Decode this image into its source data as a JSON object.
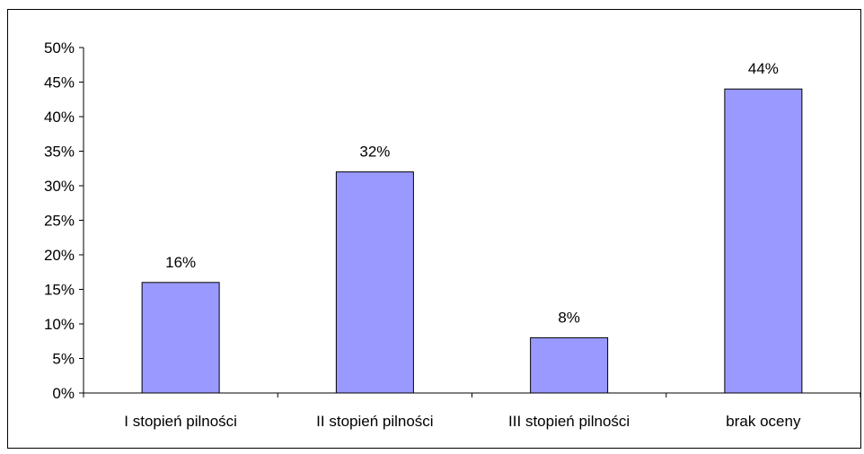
{
  "chart_data": {
    "type": "bar",
    "categories": [
      "I stopień pilności",
      "II stopień pilności",
      "III stopień pilności",
      "brak oceny"
    ],
    "values": [
      0.16,
      0.32,
      0.08,
      0.44
    ],
    "data_labels": [
      "16%",
      "32%",
      "8%",
      "44%"
    ],
    "title": "",
    "xlabel": "",
    "ylabel": "",
    "ylim": [
      0,
      0.5
    ],
    "y_ticks": [
      0,
      0.05,
      0.1,
      0.15,
      0.2,
      0.25,
      0.3,
      0.35,
      0.4,
      0.45,
      0.5
    ],
    "y_tick_labels": [
      "0%",
      "5%",
      "10%",
      "15%",
      "20%",
      "25%",
      "30%",
      "35%",
      "40%",
      "45%",
      "50%"
    ],
    "grid": false,
    "legend": "none",
    "bar_color": "#9999ff",
    "bar_edge_color": "#000000"
  }
}
